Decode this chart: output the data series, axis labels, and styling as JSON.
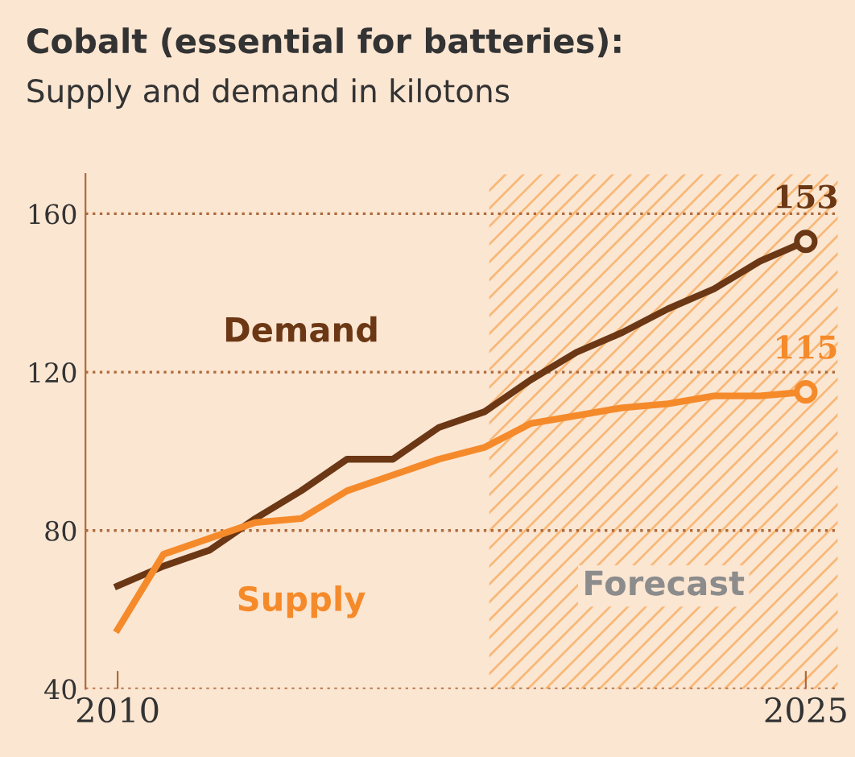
{
  "chart_data": {
    "type": "line",
    "title": "Cobalt (essential for batteries):",
    "subtitle": "Supply and demand in kilotons",
    "x": [
      2010,
      2011,
      2012,
      2013,
      2014,
      2015,
      2016,
      2017,
      2018,
      2019,
      2020,
      2021,
      2022,
      2023,
      2024,
      2025
    ],
    "series": [
      {
        "name": "Demand",
        "color": "#6b3714",
        "values": [
          66,
          71,
          75,
          83,
          90,
          98,
          98,
          106,
          110,
          118,
          125,
          130,
          136,
          141,
          148,
          153
        ],
        "value_labels": [
          null,
          null,
          null,
          null,
          null,
          null,
          null,
          null,
          null,
          null,
          null,
          null,
          null,
          null,
          null,
          "153"
        ]
      },
      {
        "name": "Supply",
        "color": "#f58a2b",
        "values": [
          55,
          74,
          78,
          82,
          83,
          90,
          94,
          98,
          101,
          107,
          109,
          111,
          112,
          114,
          114,
          115
        ],
        "value_labels": [
          null,
          null,
          null,
          null,
          null,
          null,
          null,
          null,
          null,
          null,
          null,
          null,
          null,
          null,
          null,
          "115"
        ]
      }
    ],
    "xlim": [
      2009.3,
      2025.7
    ],
    "xticks": [
      2010,
      2025
    ],
    "ylim": [
      40,
      170
    ],
    "yticks": [
      40,
      80,
      120,
      160
    ],
    "grid": "y",
    "legend": false,
    "bands": [
      {
        "axis": "x",
        "from": 2018.1,
        "to": 2025.7,
        "label": "Forecast",
        "color": "#f8b878"
      }
    ]
  }
}
